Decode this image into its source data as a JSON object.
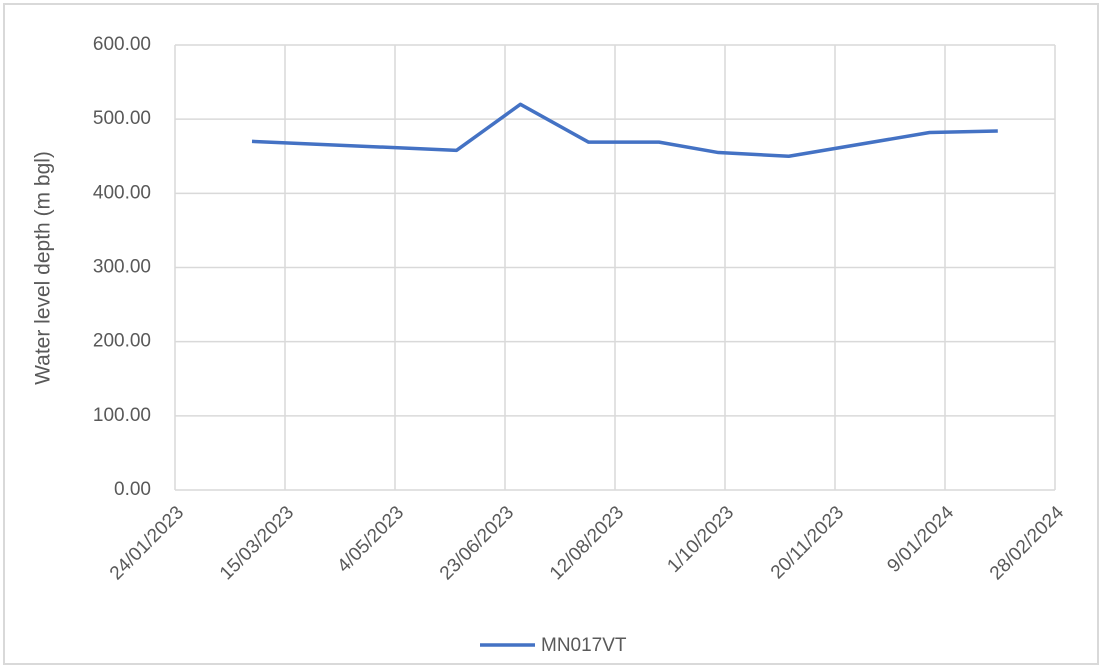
{
  "chart_data": {
    "type": "line",
    "y_label": "Water level depth (m bgl)",
    "x": [
      "2023-02-28",
      "2023-06-01",
      "2023-06-30",
      "2023-07-31",
      "2023-09-01",
      "2023-09-28",
      "2023-10-30",
      "2024-01-02",
      "2024-02-02"
    ],
    "series": [
      {
        "name": "MN017VT",
        "color": "#4472c4",
        "values": [
          470,
          458,
          520,
          469,
          469,
          455,
          450,
          482,
          484
        ]
      }
    ],
    "xlim": [
      "2023-01-24",
      "2024-02-28"
    ],
    "xticks": [
      {
        "value": "2023-01-24",
        "label": "24/01/2023"
      },
      {
        "value": "2023-03-15",
        "label": "15/03/2023"
      },
      {
        "value": "2023-05-04",
        "label": "4/05/2023"
      },
      {
        "value": "2023-06-23",
        "label": "23/06/2023"
      },
      {
        "value": "2023-08-12",
        "label": "12/08/2023"
      },
      {
        "value": "2023-10-01",
        "label": "1/10/2023"
      },
      {
        "value": "2023-11-20",
        "label": "20/11/2023"
      },
      {
        "value": "2024-01-09",
        "label": "9/01/2024"
      },
      {
        "value": "2024-02-28",
        "label": "28/02/2024"
      }
    ],
    "ylim": [
      0,
      600
    ],
    "yticks": [
      {
        "value": 0,
        "label": "0.00"
      },
      {
        "value": 100,
        "label": "100.00"
      },
      {
        "value": 200,
        "label": "200.00"
      },
      {
        "value": 300,
        "label": "300.00"
      },
      {
        "value": 400,
        "label": "400.00"
      },
      {
        "value": 500,
        "label": "500.00"
      },
      {
        "value": 600,
        "label": "600.00"
      }
    ],
    "grid": true,
    "legend": "bottom"
  }
}
